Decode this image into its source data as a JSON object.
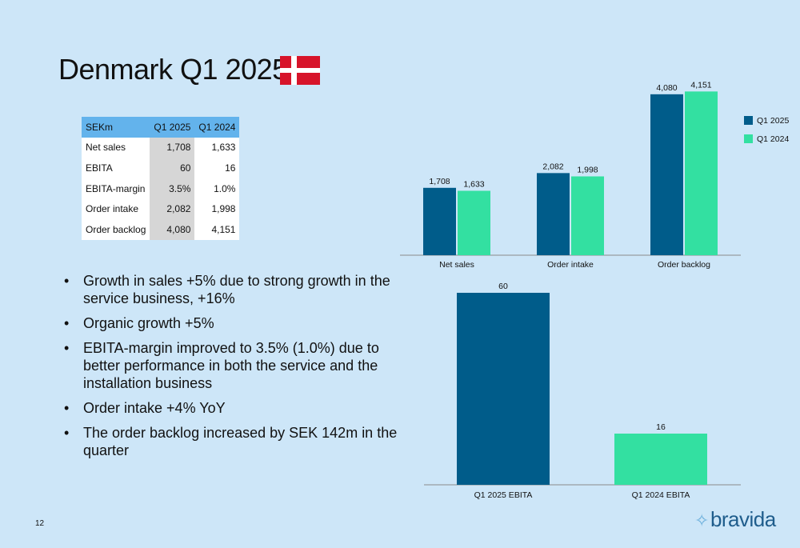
{
  "slide": {
    "title": "Denmark Q1 2025",
    "page_number": "12",
    "brand": "bravida"
  },
  "flag": {
    "red": "#d7142a",
    "cross": "#ffffff"
  },
  "kpi_table": {
    "headers": [
      "SEKm",
      "Q1 2025",
      "Q1 2024"
    ],
    "rows": [
      [
        "Net sales",
        "1,708",
        "1,633"
      ],
      [
        "EBITA",
        "60",
        "16"
      ],
      [
        "EBITA-margin",
        "3.5%",
        "1.0%"
      ],
      [
        "Order intake",
        "2,082",
        "1,998"
      ],
      [
        "Order backlog",
        "4,080",
        "4,151"
      ]
    ]
  },
  "bullets": [
    "Growth in sales +5% due to strong growth in the service business, +16%",
    "Organic growth +5%",
    "EBITA-margin improved to 3.5% (1.0%) due to better performance in both the service and the installation business",
    "Order intake +4% YoY",
    "The order backlog increased by SEK 142m in the quarter"
  ],
  "colors": {
    "q1_2025": "#005c8a",
    "q1_2024": "#33e0a1",
    "background": "#cde6f8",
    "header": "#63b3ec"
  },
  "chart_data": [
    {
      "type": "bar",
      "categories": [
        "Net sales",
        "Order intake",
        "Order backlog"
      ],
      "series": [
        {
          "name": "Q1 2025",
          "values": [
            1708,
            2082,
            4080
          ],
          "labels": [
            "1,708",
            "2,082",
            "4,080"
          ]
        },
        {
          "name": "Q1 2024",
          "values": [
            1633,
            1998,
            4151
          ],
          "labels": [
            "1,633",
            "1,998",
            "4,151"
          ]
        }
      ],
      "ylim": [
        0,
        4300
      ],
      "grid": false,
      "legend": "right"
    },
    {
      "type": "bar",
      "categories": [
        "Q1 2025 EBITA",
        "Q1 2024 EBITA"
      ],
      "values": [
        60,
        16
      ],
      "labels": [
        "60",
        "16"
      ],
      "ylim": [
        0,
        60
      ],
      "grid": false
    }
  ]
}
